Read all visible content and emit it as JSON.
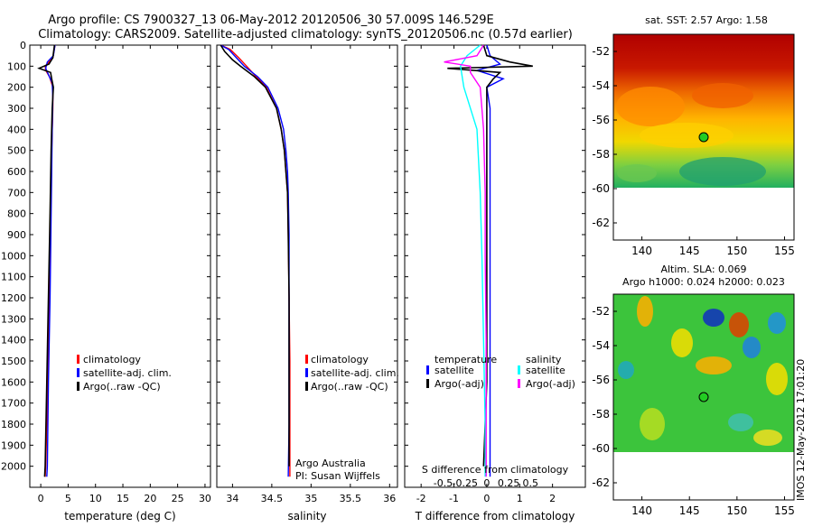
{
  "header": {
    "title_line1": "Argo profile: CS 7900327_13 06-May-2012 20120506_30 57.009S 146.529E",
    "title_line2": "Climatology: CARS2009. Satellite-adjusted climatology: synTS_20120506.nc (0.57d earlier)"
  },
  "footer": {
    "stamp": "IMOS 12-May-2012 17:01:20"
  },
  "colors": {
    "climatology": "#ff0000",
    "satellite_adj": "#0000ff",
    "argo": "#000000",
    "salinity_satellite": "#00ffff",
    "salinity_argo": "#ff00ff",
    "marker": "#22cc22"
  },
  "chart_data": [
    {
      "id": "temperature",
      "type": "line",
      "xlabel": "temperature (deg C)",
      "ylabel": "",
      "xlim": [
        -2,
        31
      ],
      "ylim": [
        2100,
        0
      ],
      "y_inverted": true,
      "xticks": [
        "0",
        "5",
        "10",
        "15",
        "20",
        "25",
        "30"
      ],
      "xtick_values": [
        0,
        5,
        10,
        15,
        20,
        25,
        30
      ],
      "yticks": [
        "0",
        "100",
        "200",
        "300",
        "400",
        "500",
        "600",
        "700",
        "800",
        "900",
        "1000",
        "1100",
        "1200",
        "1300",
        "1400",
        "1500",
        "1600",
        "1700",
        "1800",
        "1900",
        "2000"
      ],
      "ytick_values": [
        0,
        100,
        200,
        300,
        400,
        500,
        600,
        700,
        800,
        900,
        1000,
        1100,
        1200,
        1300,
        1400,
        1500,
        1600,
        1700,
        1800,
        1900,
        2000
      ],
      "legend": [
        "climatology",
        "satellite-adj. clim.",
        "Argo(..raw -QC)"
      ],
      "legend_placement": "lower-middle",
      "series": [
        {
          "name": "climatology",
          "color": "#ff0000",
          "y": [
            0,
            60,
            100,
            120,
            150,
            200,
            300,
            500,
            800,
            1200,
            1600,
            2000,
            2050
          ],
          "x": [
            2.6,
            2.2,
            0.8,
            0.9,
            1.6,
            2.2,
            2.2,
            2.0,
            1.8,
            1.6,
            1.3,
            0.9,
            0.8
          ]
        },
        {
          "name": "satellite-adj. clim.",
          "color": "#0000ff",
          "y": [
            0,
            50,
            80,
            110,
            140,
            180,
            250,
            400,
            800,
            1200,
            1600,
            2000,
            2050
          ],
          "x": [
            2.6,
            2.3,
            1.2,
            0.9,
            1.4,
            2.1,
            2.2,
            2.1,
            1.9,
            1.7,
            1.4,
            1.2,
            1.1
          ]
        },
        {
          "name": "Argo(..raw -QC)",
          "color": "#000000",
          "y": [
            0,
            60,
            90,
            110,
            130,
            160,
            200,
            300,
            500,
            800,
            1200,
            1600,
            2000,
            2050
          ],
          "x": [
            2.5,
            2.2,
            1.5,
            -0.3,
            1.8,
            2.0,
            2.3,
            2.1,
            1.9,
            1.7,
            1.4,
            1.1,
            0.8,
            0.7
          ]
        }
      ]
    },
    {
      "id": "salinity",
      "type": "line",
      "xlabel": "salinity",
      "xlim": [
        33.8,
        36.1
      ],
      "ylim": [
        2100,
        0
      ],
      "y_inverted": true,
      "xticks": [
        "34",
        "34.5",
        "35",
        "35.5",
        "36"
      ],
      "xtick_values": [
        34,
        34.5,
        35,
        35.5,
        36
      ],
      "legend": [
        "climatology",
        "satellite-adj. clim.",
        "Argo(..raw -QC)"
      ],
      "legend_placement": "lower-right",
      "annotation": [
        "Argo Australia",
        "PI: Susan Wijffels"
      ],
      "series": [
        {
          "name": "climatology",
          "color": "#ff0000",
          "y": [
            0,
            20,
            60,
            100,
            150,
            200,
            300,
            400,
            500,
            600,
            700,
            900,
            1200,
            1500,
            1800,
            2050
          ],
          "x": [
            33.85,
            33.97,
            34.08,
            34.18,
            34.3,
            34.43,
            34.56,
            34.62,
            34.66,
            34.68,
            34.7,
            34.71,
            34.72,
            34.73,
            34.73,
            34.73
          ]
        },
        {
          "name": "satellite-adj. clim.",
          "color": "#0000ff",
          "y": [
            0,
            20,
            60,
            100,
            150,
            200,
            300,
            400,
            500,
            600,
            700,
            900,
            1200,
            1500,
            1800,
            2050
          ],
          "x": [
            33.85,
            33.95,
            34.05,
            34.15,
            34.32,
            34.45,
            34.58,
            34.65,
            34.68,
            34.7,
            34.71,
            34.72,
            34.72,
            34.72,
            34.72,
            34.71
          ]
        },
        {
          "name": "Argo(..raw -QC)",
          "color": "#000000",
          "y": [
            0,
            30,
            70,
            100,
            150,
            200,
            300,
            400,
            500,
            600,
            700,
            900,
            1200,
            1500,
            1800,
            2000
          ],
          "x": [
            33.85,
            33.9,
            34.0,
            34.1,
            34.28,
            34.42,
            34.56,
            34.62,
            34.66,
            34.68,
            34.7,
            34.71,
            34.72,
            34.72,
            34.72,
            34.72
          ]
        }
      ]
    },
    {
      "id": "differences",
      "type": "line",
      "xlabel": "T difference from climatology",
      "xlabel_top": "S difference from climatology",
      "xlim": [
        -2.5,
        3
      ],
      "ylim": [
        2100,
        0
      ],
      "y_inverted": true,
      "xticks": [
        "-2",
        "-1",
        "0",
        "1",
        "2"
      ],
      "xtick_values": [
        -2,
        -1,
        0,
        1,
        2
      ],
      "xticks_s": [
        "-0.5",
        "-0.25",
        "0",
        "0.25",
        "0.5"
      ],
      "legend_temperature": {
        "title": "temperature",
        "items": [
          "satellite",
          "Argo(-adj)"
        ]
      },
      "legend_salinity": {
        "title": "salinity",
        "items": [
          "satellite",
          "Argo(-adj)"
        ]
      },
      "series": [
        {
          "name": "satellite",
          "group": "temperature",
          "color": "#0000ff",
          "y": [
            0,
            50,
            90,
            120,
            160,
            200,
            300,
            500,
            800,
            1200,
            1600,
            2000,
            2050
          ],
          "x": [
            0.0,
            0.1,
            0.4,
            -0.3,
            0.5,
            0.0,
            0.1,
            0.1,
            0.1,
            0.1,
            0.1,
            0.1,
            0.1
          ]
        },
        {
          "name": "Argo(-adj)",
          "group": "temperature",
          "color": "#000000",
          "y": [
            0,
            50,
            80,
            100,
            110,
            130,
            160,
            200,
            300,
            500,
            800,
            1200,
            1600,
            2000
          ],
          "x": [
            -0.1,
            0.0,
            0.7,
            1.4,
            -1.2,
            0.4,
            0.2,
            0.0,
            0.0,
            0.0,
            0.0,
            0.0,
            0.0,
            -0.1
          ]
        },
        {
          "name": "satellite",
          "group": "salinity",
          "color": "#00ffff",
          "y": [
            0,
            50,
            100,
            200,
            400,
            700,
            1000,
            1400,
            1800,
            2050
          ],
          "x": [
            -0.2,
            -0.6,
            -0.8,
            -0.7,
            -0.3,
            -0.2,
            -0.15,
            -0.1,
            -0.05,
            -0.05
          ]
        },
        {
          "name": "Argo(-adj)",
          "group": "salinity",
          "color": "#ff00ff",
          "y": [
            0,
            50,
            80,
            100,
            130,
            200,
            400,
            700,
            1000,
            1400,
            1800,
            2050
          ],
          "x": [
            -0.1,
            -0.3,
            -1.3,
            -0.5,
            -0.5,
            -0.2,
            -0.1,
            -0.05,
            -0.05,
            -0.02,
            -0.02,
            -0.02
          ]
        }
      ]
    },
    {
      "id": "sst-map",
      "type": "heatmap",
      "title": "sat. SST: 2.57 Argo: 1.58",
      "xlim": [
        137,
        156
      ],
      "ylim": [
        -63,
        -51
      ],
      "xticks": [
        "140",
        "145",
        "150",
        "155"
      ],
      "xtick_values": [
        140,
        145,
        150,
        155
      ],
      "yticks": [
        "-52",
        "-54",
        "-56",
        "-58",
        "-60",
        "-62"
      ],
      "ytick_values": [
        -52,
        -54,
        -56,
        -58,
        -60,
        -62
      ],
      "data_extent_lat": [
        -60,
        -51
      ],
      "marker": {
        "lon": 146.5,
        "lat": -57.0
      }
    },
    {
      "id": "sla-map",
      "type": "heatmap",
      "title_line1": "Altim. SLA: 0.069",
      "title_line2": "Argo h1000: 0.024 h2000: 0.023",
      "xlim": [
        137,
        156
      ],
      "ylim": [
        -63,
        -51
      ],
      "xticks": [
        "140",
        "145",
        "150",
        "155"
      ],
      "xtick_values": [
        140,
        145,
        150,
        155
      ],
      "yticks": [
        "-52",
        "-54",
        "-56",
        "-58",
        "-60",
        "-62"
      ],
      "ytick_values": [
        -52,
        -54,
        -56,
        -58,
        -60,
        -62
      ],
      "data_extent_lat": [
        -60,
        -51
      ],
      "marker": {
        "lon": 146.5,
        "lat": -57.0
      }
    }
  ]
}
